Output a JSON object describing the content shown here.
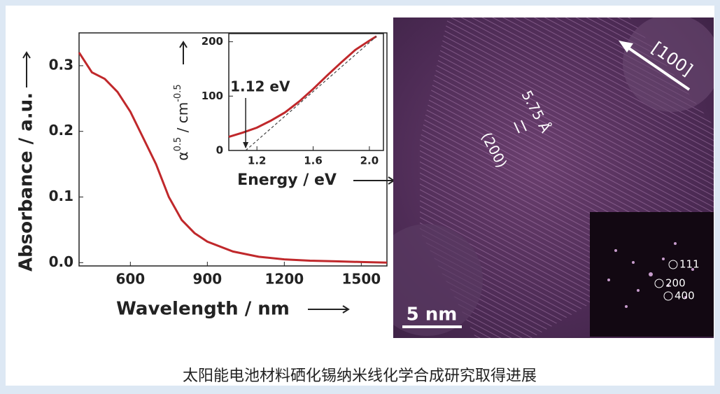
{
  "chart_data": [
    {
      "type": "line",
      "ylabel": "Absorbance / a.u.",
      "xlabel": "Wavelength / nm",
      "xlim": [
        400,
        1600
      ],
      "xticks": [
        600,
        900,
        1200,
        1500
      ],
      "ylim": [
        -0.005,
        0.35
      ],
      "yticks": [
        {
          "value": 0,
          "label": "0.0"
        },
        0.1,
        0.2,
        0.3
      ],
      "series": [
        {
          "color": "#c0282b",
          "x": [
            400,
            450,
            500,
            550,
            600,
            650,
            700,
            750,
            800,
            850,
            900,
            1000,
            1100,
            1200,
            1300,
            1400,
            1500,
            1600
          ],
          "values": [
            0.32,
            0.29,
            0.28,
            0.26,
            0.23,
            0.19,
            0.15,
            0.1,
            0.065,
            0.045,
            0.032,
            0.017,
            0.009,
            0.005,
            0.003,
            0.002,
            0.001,
            0
          ]
        }
      ]
    },
    {
      "type": "line",
      "xlabel": "Energy / eV",
      "ylabel_parts": [
        "α",
        "0.5",
        " / cm",
        "-0.5"
      ],
      "xlim": [
        1.0,
        2.1
      ],
      "xticks": [
        1.2,
        1.6,
        {
          "value": 2,
          "label": "2.0"
        }
      ],
      "ylim": [
        0,
        215
      ],
      "yticks": [
        0,
        100,
        200
      ],
      "annotation": {
        "text": "1.12 eV",
        "x": 1.12
      },
      "series": [
        {
          "color": "#c0282b",
          "x": [
            1.0,
            1.1,
            1.2,
            1.3,
            1.4,
            1.5,
            1.6,
            1.7,
            1.8,
            1.9,
            2.0,
            2.05
          ],
          "values": [
            25,
            33,
            42,
            55,
            70,
            90,
            113,
            138,
            162,
            185,
            202,
            210
          ]
        },
        {
          "color": "#444444",
          "dashed": true,
          "x": [
            1.12,
            2.05
          ],
          "values": [
            0,
            210
          ]
        }
      ]
    }
  ],
  "image": {
    "direction": "[100]",
    "spacing": "5.75 Å",
    "plane": "(200)",
    "scale": "5 nm",
    "fft_spots": [
      "111",
      "200",
      "400"
    ]
  },
  "caption": "太阳能电池材料硒化锡纳米线化学合成研究取得进展"
}
